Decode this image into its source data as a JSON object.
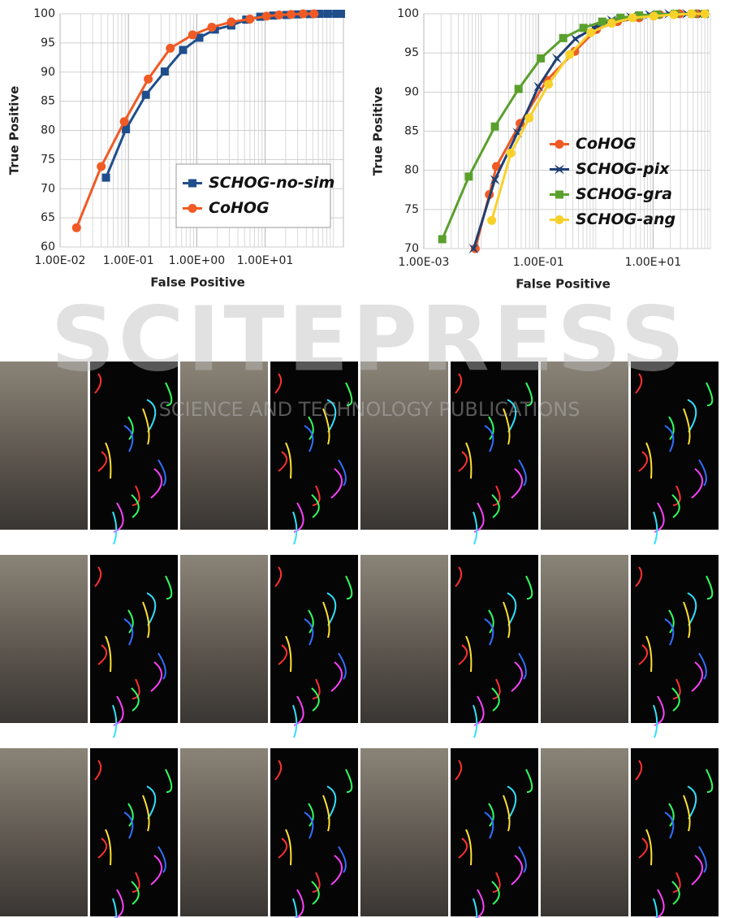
{
  "chart_data": [
    {
      "type": "line",
      "x_label": "False Positive",
      "y_label": "True Positive",
      "log_x": true,
      "grid": true,
      "xlim": [
        0.01,
        140
      ],
      "ylim": [
        60,
        100
      ],
      "xticks": [
        {
          "value": 0.01,
          "label": "1.00E-02"
        },
        {
          "value": 0.1,
          "label": "1.00E-01"
        },
        {
          "value": 1,
          "label": "1.00E+00"
        },
        {
          "value": 10,
          "label": "1.00E+01"
        }
      ],
      "yticks": [
        60,
        65,
        70,
        75,
        80,
        85,
        90,
        95,
        100
      ],
      "legend": "lower right",
      "legend_box": true,
      "series": [
        {
          "name": "SCHOG-no-sim",
          "color": "#1f4e8c",
          "marker": "square",
          "x": [
            0.047,
            0.092,
            0.18,
            0.34,
            0.63,
            1.09,
            1.84,
            3.2,
            5.3,
            8.5,
            13.2,
            20.5,
            30,
            45,
            63,
            83,
            110,
            129
          ],
          "values": [
            71.9,
            80.2,
            86.1,
            90.1,
            93.8,
            95.9,
            97.3,
            98.0,
            99.0,
            99.5,
            99.7,
            99.8,
            99.9,
            99.95,
            100,
            100,
            100,
            100
          ]
        },
        {
          "name": "CoHOG",
          "color": "#f05a24",
          "marker": "circle",
          "x": [
            0.0174,
            0.04,
            0.087,
            0.195,
            0.41,
            0.87,
            1.66,
            3.2,
            6.0,
            10.5,
            16,
            24,
            36,
            52
          ],
          "values": [
            63.3,
            73.8,
            81.5,
            88.8,
            94.1,
            96.4,
            97.7,
            98.6,
            99.1,
            99.6,
            99.8,
            99.9,
            100,
            100
          ]
        }
      ]
    },
    {
      "type": "line",
      "x_label": "False Positive",
      "y_label": "True Positive",
      "log_x": true,
      "grid": true,
      "xlim": [
        0.001,
        100
      ],
      "ylim": [
        70,
        100
      ],
      "xticks": [
        {
          "value": 0.001,
          "label": "1.00E-03"
        },
        {
          "value": 0.1,
          "label": "1.00E-01"
        },
        {
          "value": 10,
          "label": "1.00E+01"
        }
      ],
      "yticks": [
        70,
        75,
        80,
        85,
        90,
        95,
        100
      ],
      "legend": "lower right",
      "legend_box": false,
      "series": [
        {
          "name": "CoHOG",
          "color": "#f05a24",
          "marker": "circle",
          "x": [
            0.0079,
            0.0139,
            0.0185,
            0.048,
            0.14,
            0.43,
            1.03,
            2.4,
            5.7,
            13,
            29,
            57
          ],
          "values": [
            70.0,
            76.9,
            80.5,
            86.0,
            91.5,
            95.2,
            98.0,
            99.0,
            99.5,
            99.9,
            100,
            100
          ]
        },
        {
          "name": "SCHOG-pix",
          "color": "#1f3f73",
          "marker": "star",
          "x": [
            0.0074,
            0.0174,
            0.043,
            0.1,
            0.21,
            0.44,
            0.93,
            1.9,
            4.1,
            8.7,
            19,
            39,
            74
          ],
          "values": [
            70.0,
            78.8,
            84.8,
            90.7,
            94.3,
            96.8,
            98.2,
            99.2,
            99.6,
            99.9,
            100,
            100,
            100
          ]
        },
        {
          "name": "SCHOG-gra",
          "color": "#5aa02c",
          "marker": "square",
          "x": [
            0.0021,
            0.0061,
            0.0174,
            0.045,
            0.11,
            0.27,
            0.61,
            1.3,
            2.7,
            5.7,
            11.8,
            24,
            49,
            80
          ],
          "values": [
            71.2,
            79.2,
            85.6,
            90.4,
            94.3,
            96.9,
            98.2,
            99.0,
            99.5,
            99.8,
            99.9,
            100,
            100,
            100
          ]
        },
        {
          "name": "SCHOG-ang",
          "color": "#f8d12b",
          "marker": "circle",
          "x": [
            0.0153,
            0.033,
            0.069,
            0.15,
            0.35,
            0.82,
            1.9,
            4.4,
            10.3,
            23,
            47,
            80
          ],
          "values": [
            73.6,
            82.2,
            86.7,
            91.0,
            94.8,
            97.6,
            98.8,
            99.5,
            99.7,
            99.9,
            100,
            100
          ]
        }
      ]
    }
  ],
  "watermark": {
    "title": "SCITEPRESS",
    "subtitle": "SCIENCE AND TECHNOLOGY PUBLICATIONS"
  }
}
